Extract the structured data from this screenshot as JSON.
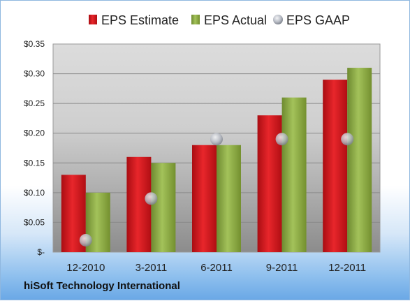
{
  "company": "hiSoft Technology International",
  "colors": {
    "estimate": "#e0141a",
    "actual": "#92b248",
    "gaap": "#b8bcc4"
  },
  "chart_data": {
    "type": "bar",
    "categories": [
      "12-2010",
      "3-2011",
      "6-2011",
      "9-2011",
      "12-2011"
    ],
    "series": [
      {
        "name": "EPS Estimate",
        "type": "bar",
        "values": [
          0.13,
          0.16,
          0.18,
          0.23,
          0.29
        ]
      },
      {
        "name": "EPS Actual",
        "type": "bar",
        "values": [
          0.1,
          0.15,
          0.18,
          0.26,
          0.31
        ]
      },
      {
        "name": "EPS GAAP",
        "type": "scatter",
        "values": [
          0.02,
          0.09,
          0.19,
          0.19,
          0.19
        ]
      }
    ],
    "ylim": [
      0,
      0.35
    ],
    "yticks": [
      0,
      0.05,
      0.1,
      0.15,
      0.2,
      0.25,
      0.3,
      0.35
    ],
    "ytick_labels": [
      "$-",
      "$0.05",
      "$0.10",
      "$0.15",
      "$0.20",
      "$0.25",
      "$0.30",
      "$0.35"
    ],
    "grid": true,
    "legend_position": "top"
  }
}
